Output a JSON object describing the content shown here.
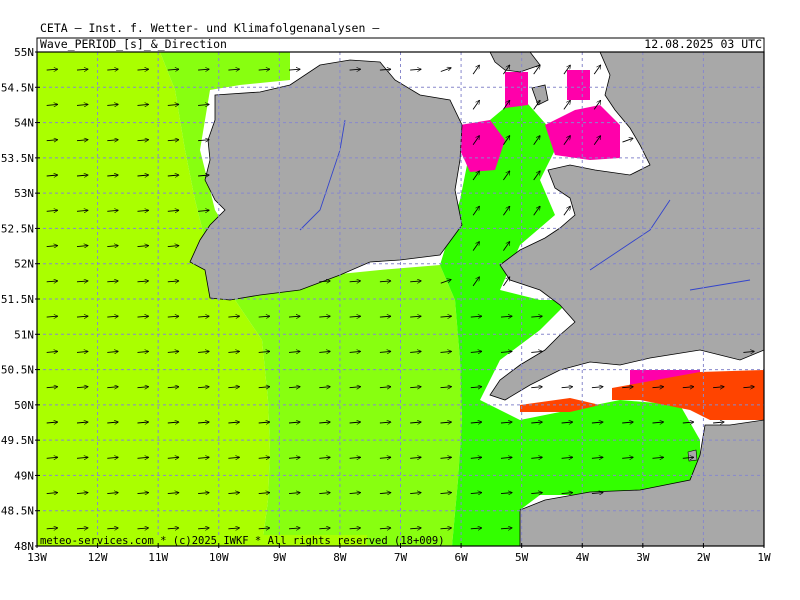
{
  "header": {
    "center_title": "CETA — Inst. f. Wetter- und Klimafolgenanalysen —",
    "left_label": "Wave_PERIOD_[s]_&_Direction",
    "right_label": "12.08.2025 03 UTC"
  },
  "footer": {
    "credit": "meteo-services.com * (c)2025 IWKF * All rights reserved (18+009)"
  },
  "axes": {
    "lat_labels": [
      "55N",
      "54.5N",
      "54N",
      "53.5N",
      "53N",
      "52.5N",
      "52N",
      "51.5N",
      "51N",
      "50.5N",
      "50N",
      "49.5N",
      "49N",
      "48.5N",
      "48N"
    ],
    "lon_labels": [
      "13W",
      "12W",
      "11W",
      "10W",
      "9W",
      "8W",
      "7W",
      "6W",
      "5W",
      "4W",
      "3W",
      "2W",
      "1W"
    ]
  },
  "map": {
    "extent": {
      "lon": [
        -13,
        -1
      ],
      "lat": [
        48,
        55
      ]
    },
    "colors": {
      "far_atlantic": "#aaff00",
      "mid_shelf": "#88ff10",
      "irish_sea": "#33ff00",
      "long_period_magenta": "#ff00aa",
      "long_period_orange": "#ff4400",
      "land": "#a8a8a8",
      "no_data": "#ffffff",
      "grid": "#8888cc",
      "arrow": "#000000"
    },
    "arrow_direction": "west-to-east"
  }
}
